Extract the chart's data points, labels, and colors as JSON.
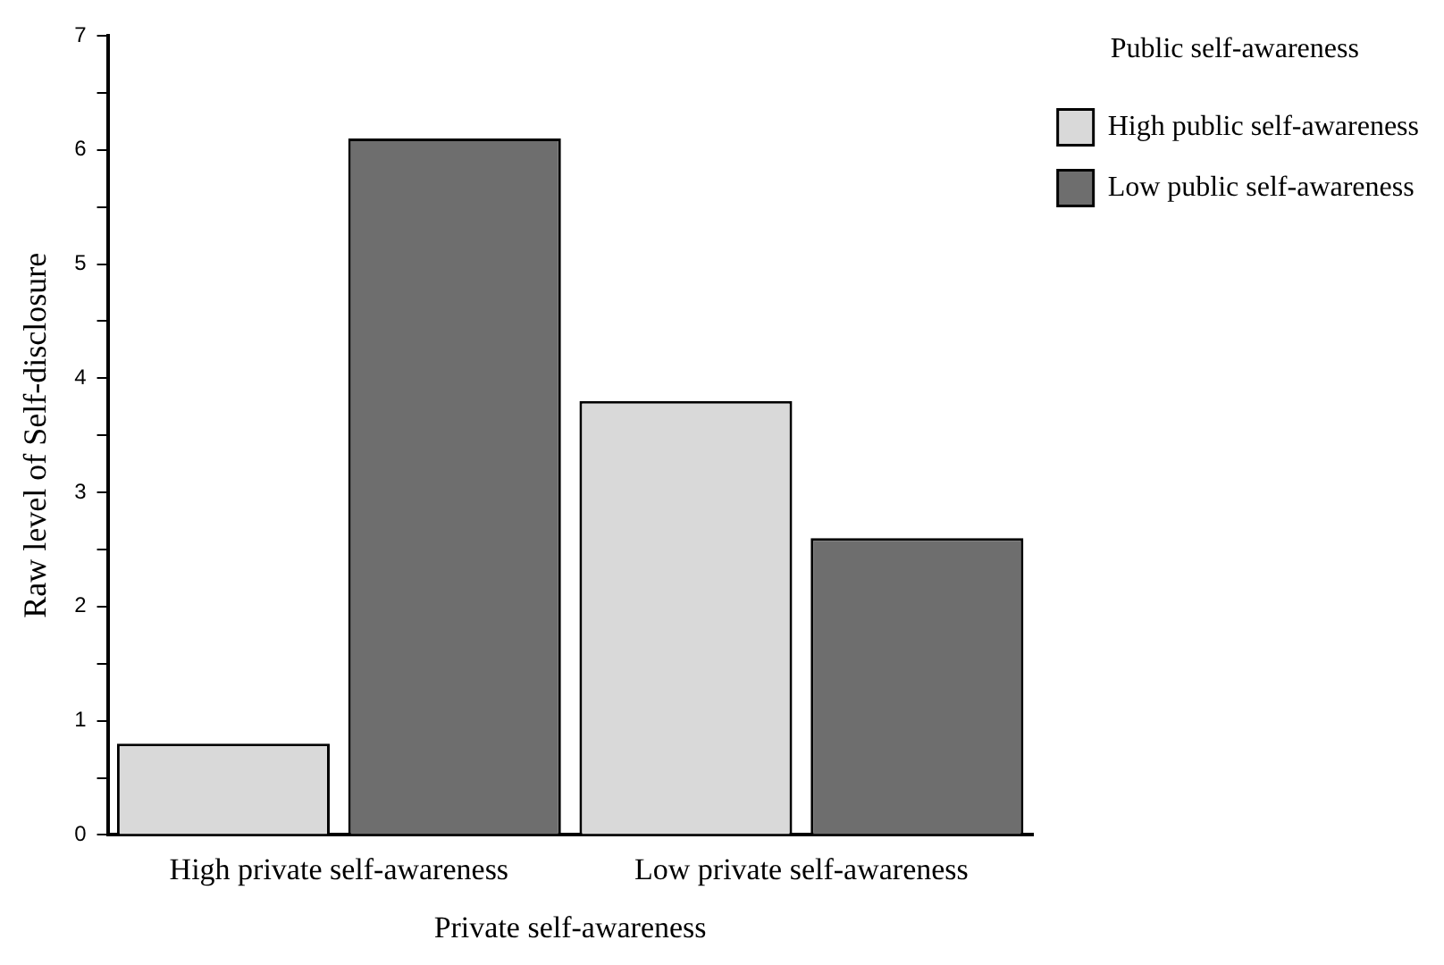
{
  "chart_data": {
    "type": "bar",
    "xlabel": "Private self-awareness",
    "ylabel": "Raw level of Self-disclosure",
    "legend_title": "Public self-awareness",
    "categories": [
      "High private self-awareness",
      "Low private self-awareness"
    ],
    "series": [
      {
        "name": "High public self-awareness",
        "color": "#d9d9d9",
        "values": [
          0.8,
          3.8
        ]
      },
      {
        "name": "Low public self-awareness",
        "color": "#6e6e6e",
        "values": [
          6.1,
          2.6
        ]
      }
    ],
    "ylim": [
      0,
      7
    ],
    "yticks": [
      0,
      {
        "value": 0.5,
        "label": null
      },
      1,
      {
        "value": 1.5,
        "label": null
      },
      2,
      {
        "value": 2.5,
        "label": null
      },
      3,
      {
        "value": 3.5,
        "label": null
      },
      4,
      {
        "value": 4.5,
        "label": null
      },
      5,
      {
        "value": 5.5,
        "label": null
      },
      6,
      {
        "value": 6.5,
        "label": null
      },
      7
    ],
    "grid": false,
    "legend": "top right"
  }
}
